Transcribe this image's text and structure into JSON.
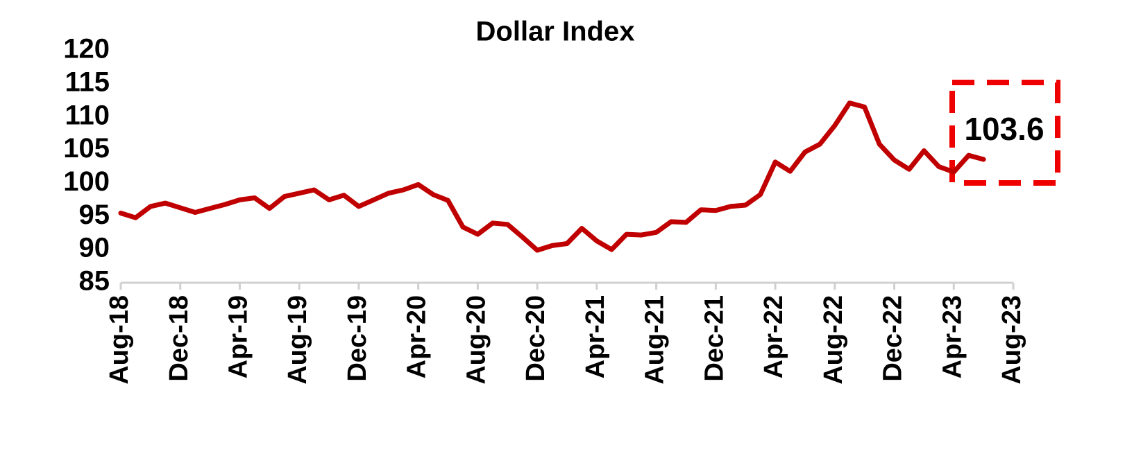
{
  "chart_data": {
    "type": "line",
    "title": "Dollar Index",
    "categories": [
      "Aug-18",
      null,
      null,
      null,
      "Dec-18",
      null,
      null,
      null,
      "Apr-19",
      null,
      null,
      null,
      "Aug-19",
      null,
      null,
      null,
      "Dec-19",
      null,
      null,
      null,
      "Apr-20",
      null,
      null,
      null,
      "Aug-20",
      null,
      null,
      null,
      "Dec-20",
      null,
      null,
      null,
      "Apr-21",
      null,
      null,
      null,
      "Aug-21",
      null,
      null,
      null,
      "Dec-21",
      null,
      null,
      null,
      "Apr-22",
      null,
      null,
      null,
      "Aug-22",
      null,
      null,
      null,
      "Dec-22",
      null,
      null,
      null,
      "Apr-23",
      null,
      null,
      null,
      "Aug-23"
    ],
    "values": [
      95.5,
      94.8,
      96.5,
      97,
      96.3,
      95.6,
      96.2,
      96.8,
      97.5,
      97.8,
      96.2,
      98,
      98.5,
      99,
      97.5,
      98.2,
      96.5,
      97.5,
      98.5,
      99,
      99.8,
      98.3,
      97.4,
      93.4,
      92.3,
      94,
      93.8,
      91.9,
      89.9,
      90.6,
      90.9,
      93.2,
      91.3,
      90,
      92.3,
      92.2,
      92.6,
      94.2,
      94.1,
      96,
      95.9,
      96.5,
      96.7,
      98.3,
      103.2,
      101.8,
      104.7,
      105.9,
      108.7,
      112.1,
      111.5,
      105.9,
      103.5,
      102.1,
      104.9,
      102.5,
      101.7,
      104.2,
      103.6,
      null,
      null
    ],
    "color": "#c00000",
    "ylim": [
      85,
      120
    ],
    "yticks": [
      85,
      90,
      95,
      100,
      105,
      110,
      115,
      120
    ],
    "annotation": "103.6"
  }
}
